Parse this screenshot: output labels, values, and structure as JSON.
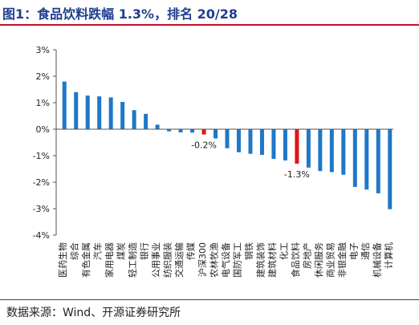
{
  "header": {
    "title": "图1：食品饮料跌幅 1.3%，排名 20/28"
  },
  "footer": {
    "source": "数据来源：Wind、开源证券研究所"
  },
  "colors": {
    "bar": "#1f78c8",
    "highlight": "#e31414",
    "title": "#1f3e8f",
    "rule": "#c8102e"
  },
  "chart_data": {
    "type": "bar",
    "ylim": [
      -4,
      3
    ],
    "yticks": [
      3,
      2,
      1,
      0,
      -1,
      -2,
      -3,
      -4
    ],
    "ytick_labels": [
      "3%",
      "2%",
      "1%",
      "0%",
      "-1%",
      "-2%",
      "-3%",
      "-4%"
    ],
    "grid": false,
    "categories": [
      "医药生物",
      "综合",
      "有色金属",
      "汽车",
      "家用电器",
      "煤炭",
      "轻工制造",
      "银行",
      "公用事业",
      "纺织服装",
      "交通运输",
      "传媒",
      "沪深300",
      "农林牧渔",
      "电气设备",
      "国防军工",
      "钢铁",
      "建筑装饰",
      "建筑材料",
      "化工",
      "食品饮料",
      "房地产",
      "休闲服务",
      "商业贸易",
      "非银金融",
      "电子",
      "通信",
      "机械设备",
      "计算机"
    ],
    "values": [
      1.8,
      1.4,
      1.27,
      1.24,
      1.2,
      1.03,
      0.72,
      0.58,
      0.17,
      -0.08,
      -0.12,
      -0.13,
      -0.2,
      -0.35,
      -0.72,
      -0.87,
      -0.93,
      -0.97,
      -1.12,
      -1.18,
      -1.3,
      -1.45,
      -1.58,
      -1.62,
      -1.72,
      -2.18,
      -2.28,
      -2.42,
      -3.02
    ],
    "highlight": {
      "沪深300": "#e31414",
      "食品饮料": "#e31414"
    },
    "data_labels": [
      {
        "category": "沪深300",
        "text": "-0.2%"
      },
      {
        "category": "食品饮料",
        "text": "-1.3%"
      }
    ]
  }
}
